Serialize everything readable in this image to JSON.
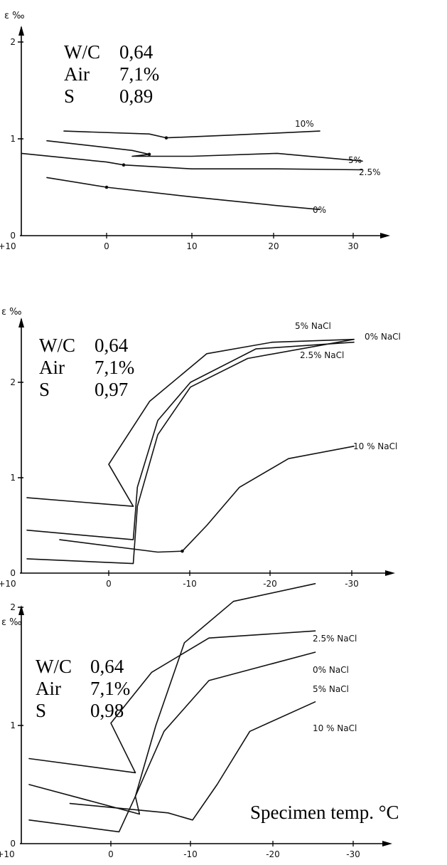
{
  "chart_data": [
    {
      "type": "line",
      "ylabel": "ε ‰",
      "xlim": [
        -10,
        30
      ],
      "ylim": [
        0,
        2
      ],
      "x_ticks": [
        "+10",
        "0",
        "10",
        "20",
        "30"
      ],
      "y_ticks": [
        "0",
        "1",
        "2"
      ],
      "params": [
        {
          "name": "W/C",
          "value": "0,64"
        },
        {
          "name": "Air",
          "value": "7,1%"
        },
        {
          "name": "S",
          "value": "0,89"
        }
      ],
      "series": [
        {
          "name": "10%",
          "points": [
            [
              -5,
              1.08
            ],
            [
              5,
              1.05
            ],
            [
              7,
              1.01
            ],
            [
              15,
              1.04
            ],
            [
              25,
              1.08
            ]
          ]
        },
        {
          "name": "5%",
          "points": [
            [
              -7,
              0.98
            ],
            [
              3,
              0.88
            ],
            [
              5,
              0.84
            ],
            [
              3,
              0.82
            ],
            [
              10,
              0.82
            ],
            [
              20,
              0.85
            ],
            [
              30,
              0.77
            ]
          ]
        },
        {
          "name": "2.5%",
          "points": [
            [
              -10,
              0.85
            ],
            [
              0,
              0.76
            ],
            [
              2,
              0.73
            ],
            [
              10,
              0.69
            ],
            [
              20,
              0.69
            ],
            [
              30,
              0.68
            ]
          ]
        },
        {
          "name": "0%",
          "points": [
            [
              -7,
              0.6
            ],
            [
              0,
              0.5
            ],
            [
              10,
              0.4
            ],
            [
              20,
              0.31
            ],
            [
              25,
              0.27
            ]
          ]
        }
      ]
    },
    {
      "type": "line",
      "ylabel": "ε ‰",
      "xlim": [
        10,
        -30
      ],
      "ylim": [
        0,
        2.5
      ],
      "x_ticks": [
        "+10",
        "0",
        "-10",
        "-20",
        "-30"
      ],
      "y_ticks": [
        "0",
        "1",
        "2"
      ],
      "params": [
        {
          "name": "W/C",
          "value": "0,64"
        },
        {
          "name": "Air",
          "value": "7,1%"
        },
        {
          "name": "S",
          "value": "0,97"
        }
      ],
      "series": [
        {
          "name": "5% NaCl",
          "points": [
            [
              10,
              0.79
            ],
            [
              -3,
              0.7
            ],
            [
              0,
              1.14
            ],
            [
              -5,
              1.8
            ],
            [
              -12,
              2.3
            ],
            [
              -20,
              2.42
            ],
            [
              -30,
              2.45
            ]
          ]
        },
        {
          "name": "0% NaCl",
          "points": [
            [
              10,
              0.15
            ],
            [
              -3,
              0.1
            ],
            [
              -3.5,
              0.7
            ],
            [
              -6,
              1.45
            ],
            [
              -10,
              1.95
            ],
            [
              -17,
              2.25
            ],
            [
              -30,
              2.45
            ]
          ]
        },
        {
          "name": "2.5% NaCl",
          "points": [
            [
              10,
              0.45
            ],
            [
              -3,
              0.35
            ],
            [
              -3.5,
              0.9
            ],
            [
              -6,
              1.6
            ],
            [
              -10,
              2.0
            ],
            [
              -18,
              2.35
            ],
            [
              -30,
              2.42
            ]
          ]
        },
        {
          "name": "10 % NaCl",
          "points": [
            [
              6,
              0.35
            ],
            [
              -6,
              0.22
            ],
            [
              -9,
              0.23
            ],
            [
              -12,
              0.5
            ],
            [
              -16,
              0.9
            ],
            [
              -22,
              1.2
            ],
            [
              -30,
              1.33
            ]
          ]
        }
      ]
    },
    {
      "type": "line",
      "ylabel": "ε ‰",
      "xlim": [
        10,
        -30
      ],
      "ylim": [
        0,
        2.2
      ],
      "x_ticks": [
        "+10",
        "0",
        "-10",
        "-20",
        "-30"
      ],
      "y_ticks": [
        "0",
        "1",
        "2"
      ],
      "xlabel": "Specimen temp. °C",
      "params": [
        {
          "name": "W/C",
          "value": "0,64"
        },
        {
          "name": "Air",
          "value": "7,1%"
        },
        {
          "name": "S",
          "value": "0,98"
        }
      ],
      "series": [
        {
          "name": "2.5% NaCl",
          "points": [
            [
              10,
              0.5
            ],
            [
              -3.5,
              0.25
            ],
            [
              -3,
              0.4
            ],
            [
              -5.5,
              1.0
            ],
            [
              -9,
              1.7
            ],
            [
              -15,
              2.05
            ],
            [
              -25,
              2.2
            ]
          ]
        },
        {
          "name": "0% NaCl",
          "points": [
            [
              10,
              0.72
            ],
            [
              -3,
              0.6
            ],
            [
              0,
              1.02
            ],
            [
              -5,
              1.45
            ],
            [
              -12,
              1.74
            ],
            [
              -25,
              1.8
            ]
          ]
        },
        {
          "name": "5% NaCl",
          "points": [
            [
              10,
              0.2
            ],
            [
              -1,
              0.1
            ],
            [
              -3,
              0.4
            ],
            [
              -6.5,
              0.95
            ],
            [
              -12,
              1.38
            ],
            [
              -25,
              1.62
            ]
          ]
        },
        {
          "name": "10 % NaCl",
          "points": [
            [
              5,
              0.34
            ],
            [
              -7,
              0.26
            ],
            [
              -10,
              0.2
            ],
            [
              -13,
              0.5
            ],
            [
              -17,
              0.95
            ],
            [
              -25,
              1.2
            ]
          ]
        }
      ]
    }
  ]
}
